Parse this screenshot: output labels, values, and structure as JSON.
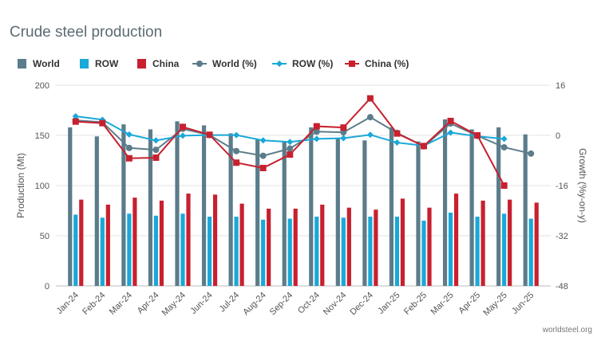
{
  "chart_data": {
    "type": "bar",
    "title": "Crude steel production",
    "categories": [
      "Jan-24",
      "Feb-24",
      "Mar-24",
      "Apr-24",
      "May-24",
      "Jun-24",
      "Jul-24",
      "Aug-24",
      "Sep-24",
      "Oct-24",
      "Nov-24",
      "Dec-24",
      "Jan-25",
      "Feb-25",
      "Mar-25",
      "Apr-25",
      "May-25",
      "Jun-25"
    ],
    "bar_series": [
      {
        "name": "World",
        "color": "#5b7c8a",
        "values": [
          158,
          149,
          161,
          156,
          164,
          160,
          152,
          146,
          144,
          158,
          147,
          145,
          158,
          144,
          166,
          156,
          158,
          151
        ]
      },
      {
        "name": "ROW",
        "color": "#19a8d8",
        "values": [
          71,
          68,
          72,
          70,
          72,
          69,
          69,
          66,
          67,
          69,
          68,
          69,
          69,
          65,
          73,
          69,
          72,
          67
        ]
      },
      {
        "name": "China",
        "color": "#c8202f",
        "values": [
          86,
          81,
          88,
          85,
          92,
          91,
          82,
          77,
          77,
          81,
          78,
          76,
          87,
          78,
          92,
          85,
          86,
          83
        ]
      }
    ],
    "line_series": [
      {
        "name": "World (%)",
        "color": "#5b7c8a",
        "marker": "circle",
        "values": [
          4.8,
          4.2,
          -4.0,
          -4.6,
          2.1,
          0.1,
          -5.0,
          -6.5,
          -4.2,
          1.2,
          1.0,
          5.8,
          0.8,
          -3.5,
          3.8,
          -0.1,
          -3.8,
          -5.8
        ]
      },
      {
        "name": "ROW (%)",
        "color": "#19a8d8",
        "marker": "diamond",
        "values": [
          6.1,
          5.0,
          0.3,
          -1.6,
          -0.1,
          0.1,
          0.1,
          -1.6,
          -2.1,
          -1.1,
          -0.9,
          0.2,
          -2.3,
          -3.3,
          0.9,
          -0.3,
          -1.1,
          null
        ]
      },
      {
        "name": "China (%)",
        "color": "#c8202f",
        "marker": "square",
        "values": [
          4.4,
          3.9,
          -7.3,
          -7.1,
          2.7,
          0.2,
          -8.7,
          -10.4,
          -6.1,
          2.9,
          2.5,
          11.8,
          0.6,
          -3.4,
          4.6,
          0.0,
          -16.0,
          null
        ]
      }
    ],
    "y_left": {
      "label": "Production (Mt)",
      "min": 0,
      "max": 200,
      "ticks": [
        "0",
        "50",
        "100",
        "150",
        "200"
      ]
    },
    "y_right": {
      "label": "Growth (%y-on-y)",
      "min": -48,
      "max": 16,
      "ticks": [
        "-48",
        "-32",
        "-16",
        "0",
        "16"
      ]
    },
    "legend": [
      "World",
      "ROW",
      "China",
      "World (%)",
      "ROW (%)",
      "China (%)"
    ],
    "legend_position": "top-left",
    "credit": "worldsteel.org"
  }
}
